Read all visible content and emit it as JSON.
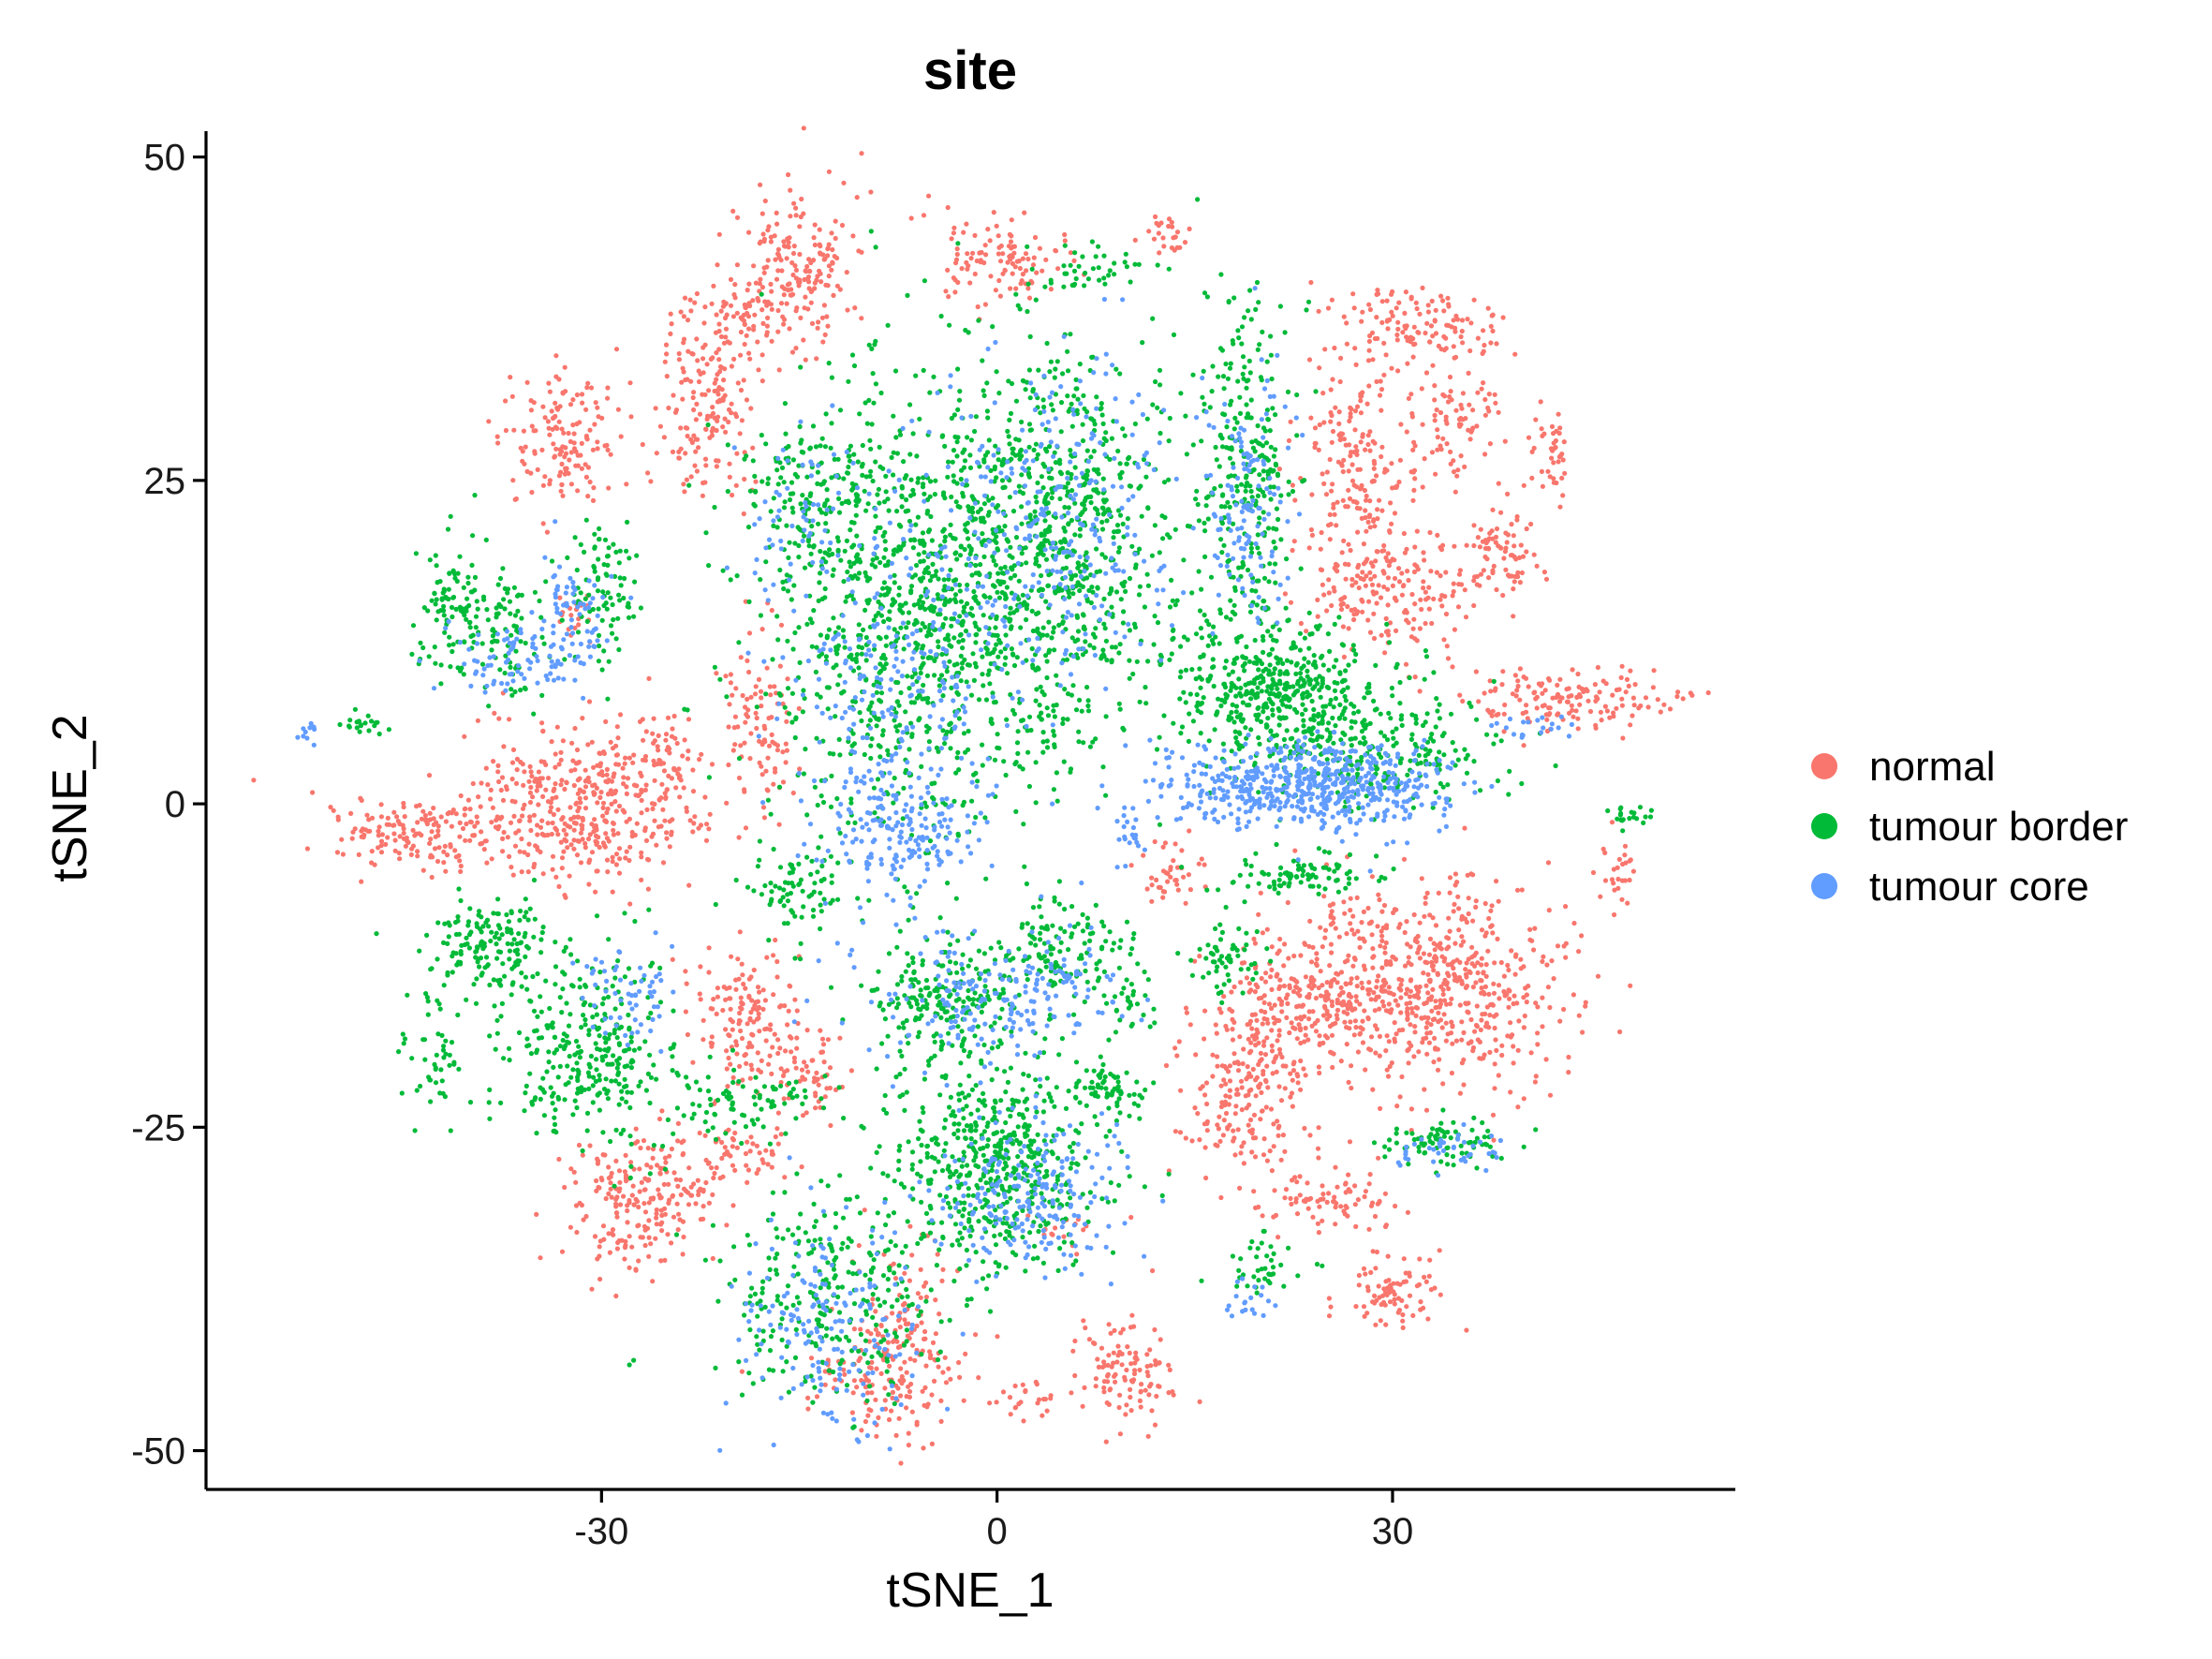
{
  "chart_data": {
    "type": "scatter",
    "title": "site",
    "xlabel": "tSNE_1",
    "ylabel": "tSNE_2",
    "xlim": [
      -60,
      56
    ],
    "ylim": [
      -53,
      52
    ],
    "x_ticks": [
      {
        "value": -30,
        "label": "-30"
      },
      {
        "value": 0,
        "label": "0"
      },
      {
        "value": 30,
        "label": "30"
      }
    ],
    "y_ticks": [
      {
        "value": 50,
        "label": "50"
      },
      {
        "value": 25,
        "label": "25"
      },
      {
        "value": 0,
        "label": "0"
      },
      {
        "value": -25,
        "label": "-25"
      },
      {
        "value": -50,
        "label": "-50"
      }
    ],
    "grid": false,
    "legend_position": "right",
    "series": [
      {
        "name": "normal",
        "color": "#F8766D",
        "clusters": [
          {
            "cx": -15,
            "cy": 41,
            "sx": 2.5,
            "sy": 3,
            "n": 200
          },
          {
            "cx": 0.5,
            "cy": 42,
            "sx": 2.5,
            "sy": 1.8,
            "n": 110
          },
          {
            "cx": 13,
            "cy": 44,
            "sx": 0.8,
            "sy": 1,
            "n": 25
          },
          {
            "cx": 32,
            "cy": 37,
            "sx": 3.5,
            "sy": 1.5,
            "n": 120
          },
          {
            "cx": 28,
            "cy": 25,
            "sx": 2.5,
            "sy": 5,
            "n": 250
          },
          {
            "cx": 35,
            "cy": 30,
            "sx": 1.5,
            "sy": 2.5,
            "n": 70
          },
          {
            "cx": 38,
            "cy": 19,
            "sx": 1.5,
            "sy": 2,
            "n": 80
          },
          {
            "cx": 42,
            "cy": 27,
            "sx": 0.8,
            "sy": 2,
            "n": 40
          },
          {
            "cx": 30,
            "cy": 16,
            "sx": 3,
            "sy": 2,
            "n": 140
          },
          {
            "cx": -22,
            "cy": 31,
            "sx": 2,
            "sy": 4,
            "n": 180
          },
          {
            "cx": -19,
            "cy": 38,
            "sx": 1.2,
            "sy": 1,
            "n": 30
          },
          {
            "cx": -33,
            "cy": 28,
            "sx": 2,
            "sy": 3,
            "n": 150
          },
          {
            "cx": -32,
            "cy": 15,
            "sx": 0.8,
            "sy": 1,
            "n": 20
          },
          {
            "cx": 43,
            "cy": 8,
            "sx": 4,
            "sy": 1.3,
            "n": 150
          },
          {
            "cx": -31,
            "cy": 0,
            "sx": 4.5,
            "sy": 3,
            "n": 420
          },
          {
            "cx": -44,
            "cy": -2,
            "sx": 3.5,
            "sy": 1.5,
            "n": 170
          },
          {
            "cx": -18,
            "cy": 6,
            "sx": 1.5,
            "sy": 3.5,
            "n": 100
          },
          {
            "cx": -25,
            "cy": 3,
            "sx": 1,
            "sy": 2.5,
            "n": 50
          },
          {
            "cx": 13,
            "cy": -5,
            "sx": 1.2,
            "sy": 1.2,
            "n": 40
          },
          {
            "cx": 47,
            "cy": -5,
            "sx": 0.8,
            "sy": 1.5,
            "n": 25
          },
          {
            "cx": 33,
            "cy": -14,
            "sx": 5,
            "sy": 4,
            "n": 650
          },
          {
            "cx": 23,
            "cy": -15,
            "sx": 2.5,
            "sy": 3,
            "n": 160
          },
          {
            "cx": 19,
            "cy": -22,
            "sx": 2.5,
            "sy": 3.5,
            "n": 220
          },
          {
            "cx": -19,
            "cy": -17,
            "sx": 2,
            "sy": 2.5,
            "n": 150
          },
          {
            "cx": -14,
            "cy": -21,
            "sx": 1.5,
            "sy": 2,
            "n": 60
          },
          {
            "cx": -27,
            "cy": -31,
            "sx": 3,
            "sy": 2.5,
            "n": 220
          },
          {
            "cx": -20,
            "cy": -27,
            "sx": 2,
            "sy": 1.2,
            "n": 60
          },
          {
            "cx": -7,
            "cy": -42,
            "sx": 2,
            "sy": 4,
            "n": 170
          },
          {
            "cx": -11,
            "cy": -44,
            "sx": 2,
            "sy": 1.5,
            "n": 50
          },
          {
            "cx": 25,
            "cy": -31,
            "sx": 2.5,
            "sy": 1.2,
            "n": 80
          },
          {
            "cx": 30,
            "cy": -38,
            "sx": 2,
            "sy": 1.2,
            "n": 80
          },
          {
            "cx": 10,
            "cy": -44,
            "sx": 1.8,
            "sy": 2,
            "n": 110
          },
          {
            "cx": 2,
            "cy": -46,
            "sx": 1.5,
            "sy": 1,
            "n": 25
          },
          {
            "cx": 5,
            "cy": -33,
            "sx": 1.5,
            "sy": 0.8,
            "n": 15
          }
        ]
      },
      {
        "name": "tumour border",
        "color": "#00BA38",
        "clusters": [
          {
            "cx": -7,
            "cy": 14,
            "sx": 5,
            "sy": 9,
            "n": 950
          },
          {
            "cx": 5,
            "cy": 20,
            "sx": 4.5,
            "sy": 8,
            "n": 850
          },
          {
            "cx": -15,
            "cy": 24,
            "sx": 2.5,
            "sy": 3,
            "n": 120
          },
          {
            "cx": 19,
            "cy": 25,
            "sx": 2,
            "sy": 7,
            "n": 280
          },
          {
            "cx": 21,
            "cy": 9,
            "sx": 4,
            "sy": 2.5,
            "n": 450
          },
          {
            "cx": 28,
            "cy": 4,
            "sx": 5,
            "sy": 2,
            "n": 250
          },
          {
            "cx": -41,
            "cy": 15,
            "sx": 1.5,
            "sy": 2.5,
            "n": 110
          },
          {
            "cx": -37,
            "cy": 13,
            "sx": 1.2,
            "sy": 3,
            "n": 70
          },
          {
            "cx": -30,
            "cy": 17,
            "sx": 1.5,
            "sy": 3,
            "n": 90
          },
          {
            "cx": 7,
            "cy": 41,
            "sx": 2,
            "sy": 1,
            "n": 40
          },
          {
            "cx": -15,
            "cy": -7,
            "sx": 2,
            "sy": 1.5,
            "n": 80
          },
          {
            "cx": 23,
            "cy": -5.5,
            "sx": 3,
            "sy": 0.8,
            "n": 90
          },
          {
            "cx": -38,
            "cy": -11,
            "sx": 2.5,
            "sy": 2,
            "n": 160
          },
          {
            "cx": -31,
            "cy": -19,
            "sx": 3,
            "sy": 4,
            "n": 300
          },
          {
            "cx": -4,
            "cy": -15,
            "sx": 3,
            "sy": 2.5,
            "n": 220
          },
          {
            "cx": 5,
            "cy": -11,
            "sx": 2.5,
            "sy": 2,
            "n": 120
          },
          {
            "cx": 17,
            "cy": -12,
            "sx": 1.5,
            "sy": 1.5,
            "n": 60
          },
          {
            "cx": 0,
            "cy": -28,
            "sx": 4,
            "sy": 4,
            "n": 550
          },
          {
            "cx": 9,
            "cy": -22,
            "sx": 1.5,
            "sy": 1,
            "n": 60
          },
          {
            "cx": -13,
            "cy": -38,
            "sx": 4,
            "sy": 4,
            "n": 280
          },
          {
            "cx": -20,
            "cy": -23,
            "sx": 3,
            "sy": 1.5,
            "n": 90
          },
          {
            "cx": 34,
            "cy": -26,
            "sx": 2.5,
            "sy": 1,
            "n": 80
          },
          {
            "cx": 20,
            "cy": -36,
            "sx": 1.5,
            "sy": 1.2,
            "n": 40
          },
          {
            "cx": -43,
            "cy": -19,
            "sx": 1.2,
            "sy": 3,
            "n": 50
          },
          {
            "cx": -48,
            "cy": 6,
            "sx": 1.2,
            "sy": 0.4,
            "n": 20
          },
          {
            "cx": 48,
            "cy": -1,
            "sx": 1,
            "sy": 0.5,
            "n": 20
          },
          {
            "cx": 10,
            "cy": -15,
            "sx": 1.2,
            "sy": 1.5,
            "n": 30
          }
        ]
      },
      {
        "name": "tumour core",
        "color": "#619CFF",
        "clusters": [
          {
            "cx": -7,
            "cy": 8,
            "sx": 5,
            "sy": 10,
            "n": 350
          },
          {
            "cx": -7,
            "cy": -2,
            "sx": 2.5,
            "sy": 2.5,
            "n": 130
          },
          {
            "cx": 5,
            "cy": 22,
            "sx": 4,
            "sy": 7,
            "n": 260
          },
          {
            "cx": 19,
            "cy": 24,
            "sx": 1.5,
            "sy": 5,
            "n": 130
          },
          {
            "cx": 22,
            "cy": 1.5,
            "sx": 5,
            "sy": 1.8,
            "n": 450
          },
          {
            "cx": 29,
            "cy": 1,
            "sx": 3,
            "sy": 1.5,
            "n": 150
          },
          {
            "cx": -36,
            "cy": 11,
            "sx": 2.5,
            "sy": 1.5,
            "n": 90
          },
          {
            "cx": -32,
            "cy": 15,
            "sx": 1.5,
            "sy": 2,
            "n": 60
          },
          {
            "cx": -15,
            "cy": 22,
            "sx": 2,
            "sy": 3,
            "n": 50
          },
          {
            "cx": -2,
            "cy": -16,
            "sx": 3,
            "sy": 2.5,
            "n": 110
          },
          {
            "cx": 5,
            "cy": -14,
            "sx": 2.5,
            "sy": 2,
            "n": 80
          },
          {
            "cx": 2,
            "cy": -30,
            "sx": 3.5,
            "sy": 3,
            "n": 220
          },
          {
            "cx": -13,
            "cy": -40,
            "sx": 3.5,
            "sy": 4,
            "n": 180
          },
          {
            "cx": -28,
            "cy": -15,
            "sx": 2,
            "sy": 2,
            "n": 60
          },
          {
            "cx": 10,
            "cy": -2,
            "sx": 0.5,
            "sy": 1,
            "n": 20
          },
          {
            "cx": 35,
            "cy": -27,
            "sx": 2,
            "sy": 0.8,
            "n": 40
          },
          {
            "cx": -52,
            "cy": 5.5,
            "sx": 0.5,
            "sy": 0.5,
            "n": 10
          },
          {
            "cx": 19,
            "cy": -38,
            "sx": 1.2,
            "sy": 0.8,
            "n": 20
          },
          {
            "cx": 40,
            "cy": 6,
            "sx": 2,
            "sy": 0.6,
            "n": 20
          }
        ]
      }
    ]
  }
}
